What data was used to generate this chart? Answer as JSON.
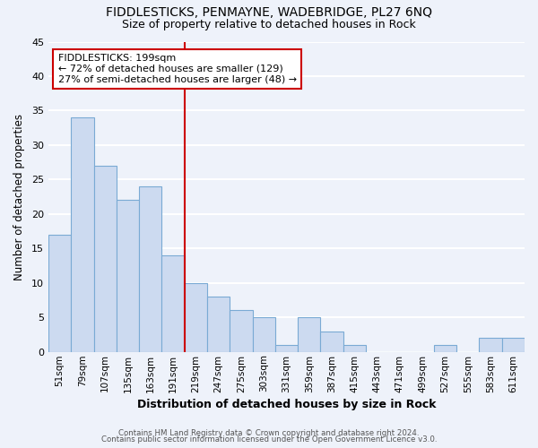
{
  "title": "FIDDLESTICKS, PENMAYNE, WADEBRIDGE, PL27 6NQ",
  "subtitle": "Size of property relative to detached houses in Rock",
  "xlabel": "Distribution of detached houses by size in Rock",
  "ylabel": "Number of detached properties",
  "categories": [
    "51sqm",
    "79sqm",
    "107sqm",
    "135sqm",
    "163sqm",
    "191sqm",
    "219sqm",
    "247sqm",
    "275sqm",
    "303sqm",
    "331sqm",
    "359sqm",
    "387sqm",
    "415sqm",
    "443sqm",
    "471sqm",
    "499sqm",
    "527sqm",
    "555sqm",
    "583sqm",
    "611sqm"
  ],
  "values": [
    17,
    34,
    27,
    22,
    24,
    14,
    10,
    8,
    6,
    5,
    1,
    5,
    3,
    1,
    0,
    0,
    0,
    1,
    0,
    2,
    2
  ],
  "bar_color": "#ccdaf0",
  "bar_edge_color": "#7aaad4",
  "vline_x_index": 5,
  "vline_color": "#cc0000",
  "annotation_title": "FIDDLESTICKS: 199sqm",
  "annotation_line1": "← 72% of detached houses are smaller (129)",
  "annotation_line2": "27% of semi-detached houses are larger (48) →",
  "annotation_box_edge": "#cc0000",
  "ylim": [
    0,
    45
  ],
  "yticks": [
    0,
    5,
    10,
    15,
    20,
    25,
    30,
    35,
    40,
    45
  ],
  "footer_line1": "Contains HM Land Registry data © Crown copyright and database right 2024.",
  "footer_line2": "Contains public sector information licensed under the Open Government Licence v3.0.",
  "bg_color": "#eef2fa",
  "plot_bg_color": "#eef2fa",
  "grid_color": "#ffffff",
  "title_fontsize": 10,
  "subtitle_fontsize": 9
}
